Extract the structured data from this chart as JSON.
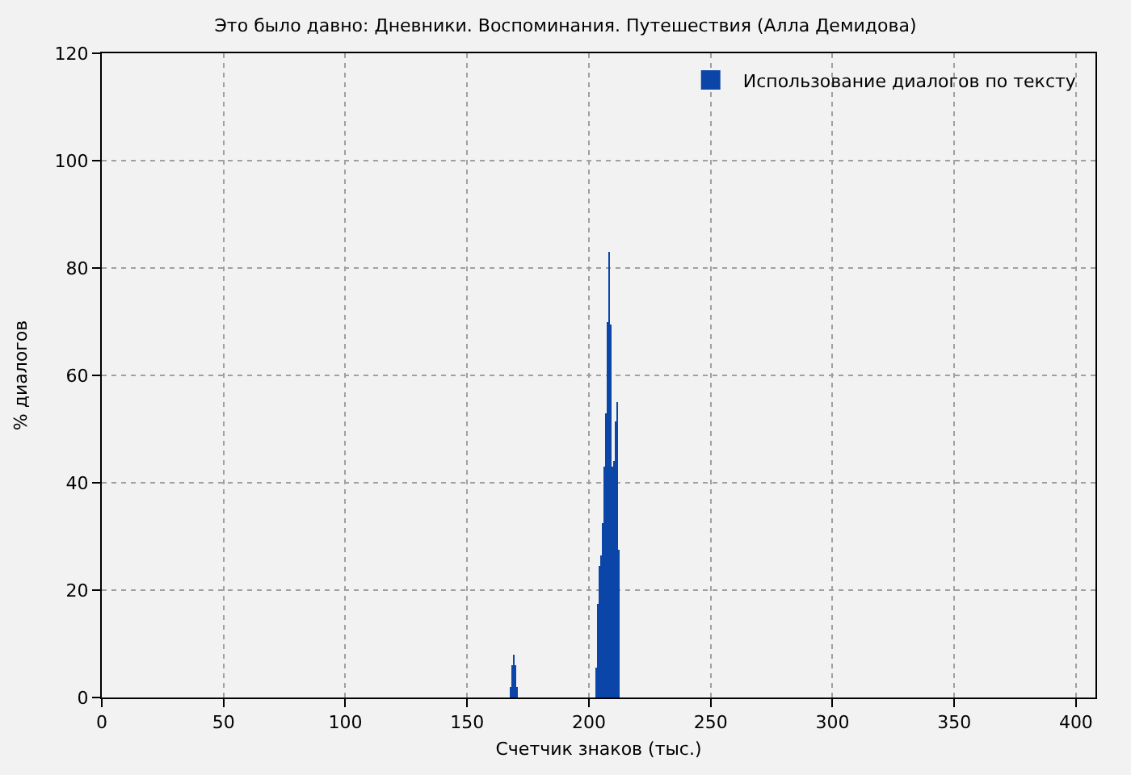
{
  "chart_data": {
    "type": "bar",
    "title": "Это было давно: Дневники. Воспоминания. Путешествия (Алла Демидова)",
    "xlabel": "Счетчик знаков (тыс.)",
    "ylabel": "% диалогов",
    "x": [
      167.93,
      168.59,
      169.25,
      169.91,
      170.57,
      202.97,
      203.63,
      204.29,
      204.95,
      205.61,
      206.27,
      206.93,
      207.59,
      208.25,
      208.91,
      209.57,
      210.23,
      210.89,
      211.55,
      212.21
    ],
    "series": [
      {
        "name": "Использование диалогов по тексту",
        "color": "#0b45a8",
        "values": [
          2,
          6,
          8,
          6,
          2,
          5.5,
          17.5,
          24.5,
          26.5,
          32.5,
          43,
          53,
          70,
          83,
          69.5,
          43,
          44,
          51.5,
          55,
          27.5
        ]
      }
    ],
    "xlim": [
      0,
      408
    ],
    "xticks": [
      0,
      50,
      100,
      150,
      200,
      250,
      300,
      350,
      400
    ],
    "ylim": [
      0,
      120
    ],
    "yticks": [
      0,
      20,
      40,
      60,
      80,
      100,
      120
    ],
    "grid": true,
    "legend": "top right"
  }
}
